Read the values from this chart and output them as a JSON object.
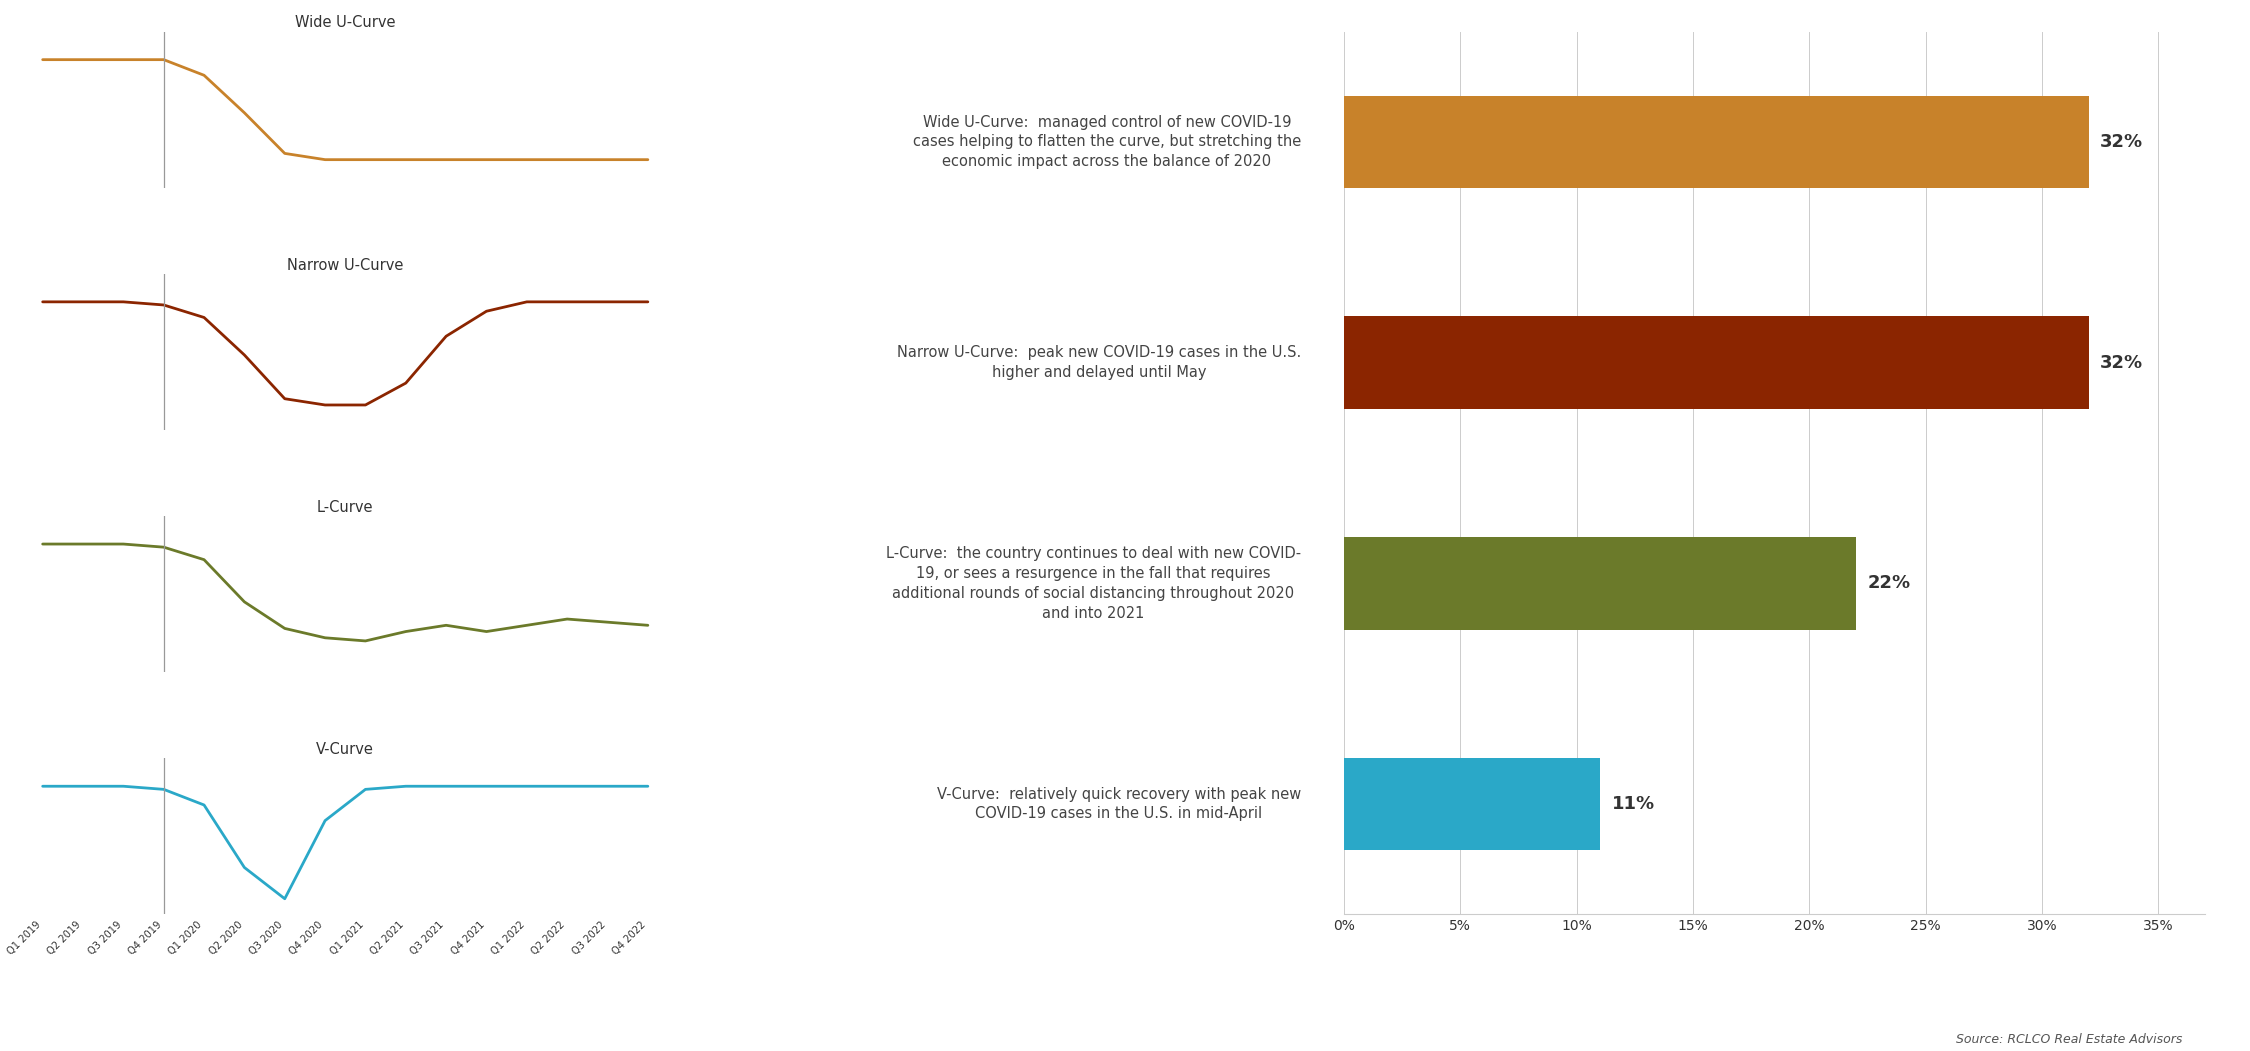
{
  "curves": {
    "wide_u": {
      "color": "#C8822A",
      "title": "Wide U-Curve",
      "description": "Wide U-Curve:  managed control of new COVID-19\ncases helping to flatten the curve, but stretching the\neconomic impact across the balance of 2020",
      "pct": 32
    },
    "narrow_u": {
      "color": "#8B2500",
      "title": "Narrow U-Curve",
      "description": "Narrow U-Curve:  peak new COVID-19 cases in the U.S.\nhigher and delayed until May",
      "pct": 32
    },
    "l_curve": {
      "color": "#6B7A2A",
      "title": "L-Curve",
      "description": "L-Curve:  the country continues to deal with new COVID-\n19, or sees a resurgence in the fall that requires\nadditional rounds of social distancing throughout 2020\nand into 2021",
      "pct": 22
    },
    "v_curve": {
      "color": "#2AA8C8",
      "title": "V-Curve",
      "description": "V-Curve:  relatively quick recovery with peak new\nCOVID-19 cases in the U.S. in mid-April",
      "pct": 11
    }
  },
  "x_labels": [
    "Q1 2019",
    "Q2 2019",
    "Q3 2019",
    "Q4 2019",
    "Q1 2020",
    "Q2 2020",
    "Q3 2020",
    "Q4 2020",
    "Q1 2021",
    "Q2 2021",
    "Q3 2021",
    "Q4 2021",
    "Q1 2022",
    "Q2 2022",
    "Q3 2022",
    "Q4 2022"
  ],
  "bar_colors": [
    "#C8822A",
    "#8B2500",
    "#6B7A2A",
    "#2AA8C8"
  ],
  "bar_values": [
    32,
    32,
    22,
    11
  ],
  "x_ticks_pct": [
    0,
    5,
    10,
    15,
    20,
    25,
    30,
    35
  ],
  "source_text": "Source: RCLCO Real Estate Advisors",
  "background_color": "#FFFFFF",
  "wide_u_y": [
    0.82,
    0.82,
    0.82,
    0.82,
    0.72,
    0.48,
    0.22,
    0.18,
    0.18,
    0.18,
    0.18,
    0.18,
    0.18,
    0.18,
    0.18,
    0.18
  ],
  "narrow_u_y": [
    0.82,
    0.82,
    0.82,
    0.8,
    0.72,
    0.48,
    0.2,
    0.16,
    0.16,
    0.3,
    0.6,
    0.76,
    0.82,
    0.82,
    0.82,
    0.82
  ],
  "l_curve_y": [
    0.82,
    0.82,
    0.82,
    0.8,
    0.72,
    0.45,
    0.28,
    0.22,
    0.2,
    0.26,
    0.3,
    0.26,
    0.3,
    0.34,
    0.32,
    0.3
  ],
  "v_curve_y": [
    0.82,
    0.82,
    0.82,
    0.8,
    0.7,
    0.3,
    0.1,
    0.6,
    0.8,
    0.82,
    0.82,
    0.82,
    0.82,
    0.82,
    0.82,
    0.82
  ]
}
